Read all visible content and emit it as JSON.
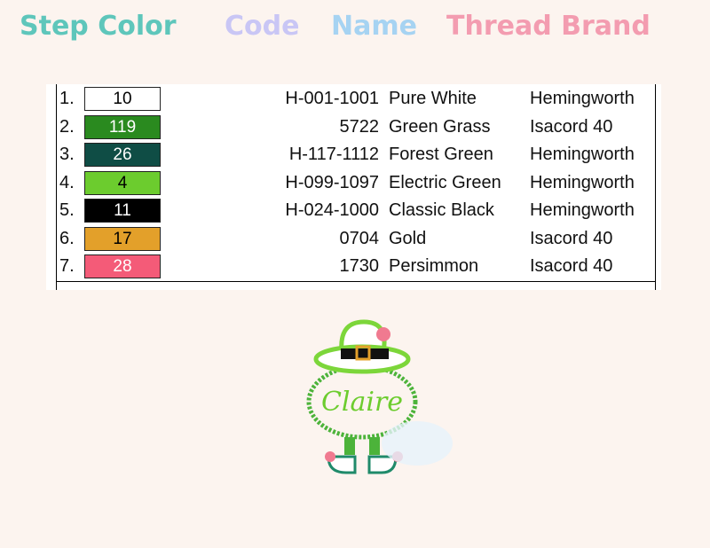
{
  "headers": [
    {
      "label": "Step Color",
      "color": "#5ec6bb"
    },
    {
      "label": "Code",
      "color": "#c9c6f5"
    },
    {
      "label": "Name",
      "color": "#a6d3f2"
    },
    {
      "label": "Thread Brand",
      "color": "#f39cb0"
    }
  ],
  "rows": [
    {
      "step": "1.",
      "color_num": "10",
      "swatch": "#ffffff",
      "text": "#000000",
      "code": "H-001-1001",
      "name": "Pure White",
      "brand": "Hemingworth"
    },
    {
      "step": "2.",
      "color_num": "119",
      "swatch": "#2a8a1f",
      "text": "#ffffff",
      "code": "5722",
      "name": "Green Grass",
      "brand": "Isacord 40"
    },
    {
      "step": "3.",
      "color_num": "26",
      "swatch": "#0f4d45",
      "text": "#ffffff",
      "code": "H-117-1112",
      "name": "Forest Green",
      "brand": "Hemingworth"
    },
    {
      "step": "4.",
      "color_num": "4",
      "swatch": "#6ccc2e",
      "text": "#000000",
      "code": "H-099-1097",
      "name": "Electric Green",
      "brand": "Hemingworth"
    },
    {
      "step": "5.",
      "color_num": "11",
      "swatch": "#000000",
      "text": "#ffffff",
      "code": "H-024-1000",
      "name": "Classic Black",
      "brand": "Hemingworth"
    },
    {
      "step": "6.",
      "color_num": "17",
      "swatch": "#e3a02a",
      "text": "#000000",
      "code": "0704",
      "name": "Gold",
      "brand": "Isacord 40"
    },
    {
      "step": "7.",
      "color_num": "28",
      "swatch": "#f45b78",
      "text": "#ffffff",
      "code": "1730",
      "name": "Persimmon",
      "brand": "Isacord 40"
    }
  ],
  "design": {
    "name_text": "Claire"
  }
}
